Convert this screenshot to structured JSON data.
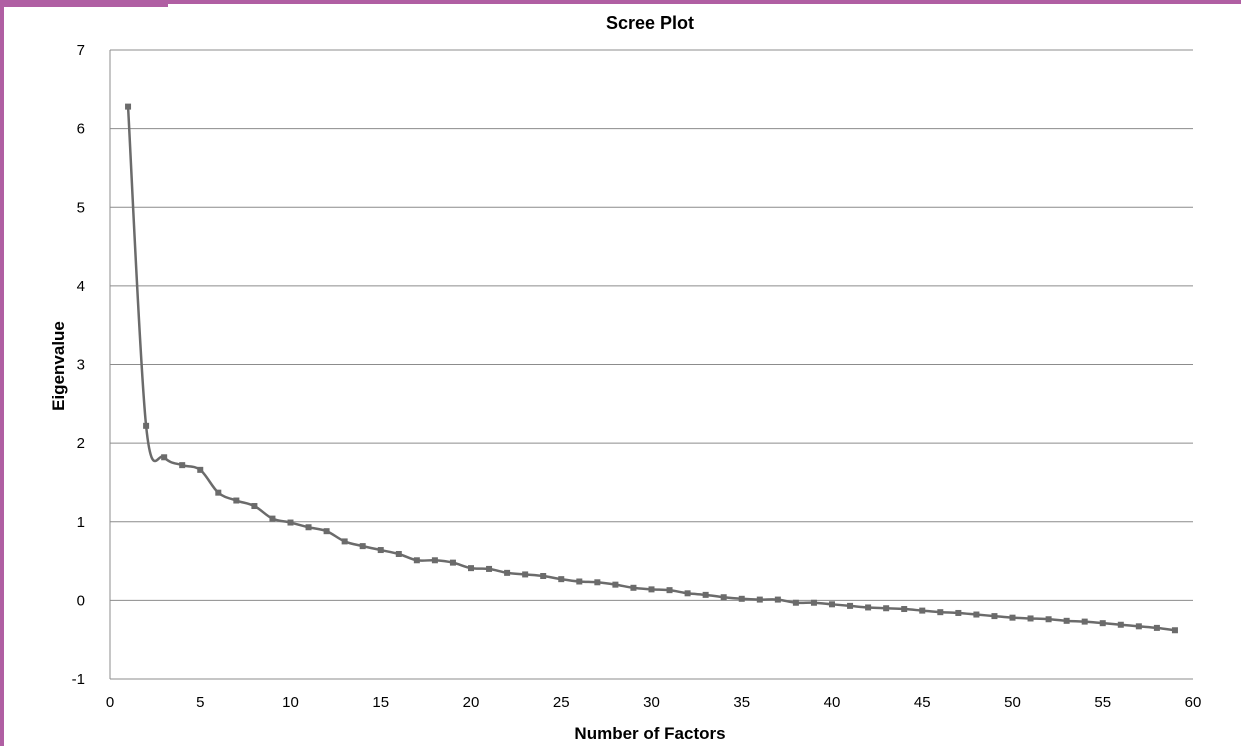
{
  "chart_data": {
    "type": "line",
    "title": "Scree Plot",
    "xlabel": "Number of Factors",
    "ylabel": "Eigenvalue",
    "xlim": [
      0,
      60
    ],
    "ylim": [
      -1,
      7
    ],
    "xticks": [
      0,
      5,
      10,
      15,
      20,
      25,
      30,
      35,
      40,
      45,
      50,
      55,
      60
    ],
    "yticks": [
      -1,
      0,
      1,
      2,
      3,
      4,
      5,
      6,
      7
    ],
    "grid": "horizontal",
    "legend": "none",
    "line_color": "#6b6b6b",
    "x": [
      1,
      2,
      3,
      4,
      5,
      6,
      7,
      8,
      9,
      10,
      11,
      12,
      13,
      14,
      15,
      16,
      17,
      18,
      19,
      20,
      21,
      22,
      23,
      24,
      25,
      26,
      27,
      28,
      29,
      30,
      31,
      32,
      33,
      34,
      35,
      36,
      37,
      38,
      39,
      40,
      41,
      42,
      43,
      44,
      45,
      46,
      47,
      48,
      49,
      50,
      51,
      52,
      53,
      54,
      55,
      56,
      57,
      58,
      59
    ],
    "y": [
      6.28,
      2.22,
      1.82,
      1.72,
      1.66,
      1.37,
      1.27,
      1.2,
      1.04,
      0.99,
      0.93,
      0.88,
      0.75,
      0.69,
      0.64,
      0.59,
      0.51,
      0.51,
      0.48,
      0.41,
      0.4,
      0.35,
      0.33,
      0.31,
      0.27,
      0.24,
      0.23,
      0.2,
      0.16,
      0.14,
      0.13,
      0.09,
      0.07,
      0.04,
      0.02,
      0.01,
      0.01,
      -0.03,
      -0.03,
      -0.05,
      -0.07,
      -0.09,
      -0.1,
      -0.11,
      -0.13,
      -0.15,
      -0.16,
      -0.18,
      -0.2,
      -0.22,
      -0.23,
      -0.24,
      -0.26,
      -0.27,
      -0.29,
      -0.31,
      -0.33,
      -0.35,
      -0.38
    ]
  }
}
